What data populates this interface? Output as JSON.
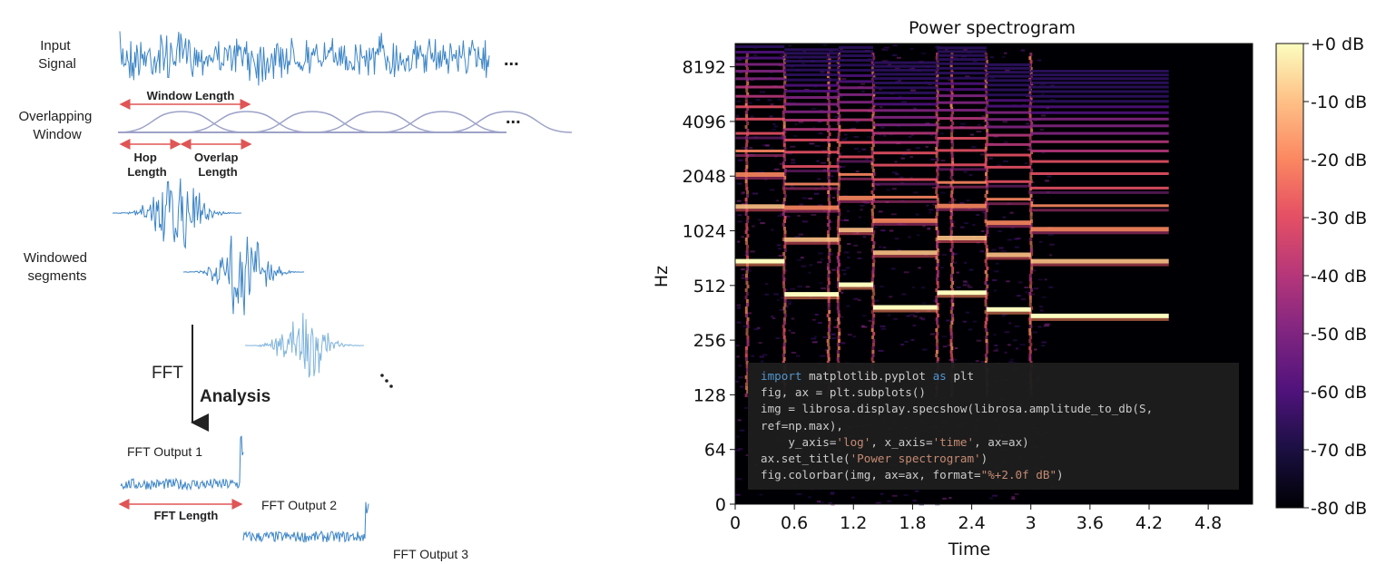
{
  "diagram": {
    "input_signal": [
      "Input",
      "Signal"
    ],
    "overlapping_window": [
      "Overlapping",
      "Window"
    ],
    "window_length": "Window Length",
    "hop_length": [
      "Hop",
      "Length"
    ],
    "overlap_length": [
      "Overlap",
      "Length"
    ],
    "windowed_segments": [
      "Windowed",
      "segments"
    ],
    "fft": "FFT",
    "analysis": "Analysis",
    "fft_output_1": "FFT Output 1",
    "fft_output_2": "FFT Output 2",
    "fft_output_3": "FFT Output 3",
    "fft_length": "FFT Length",
    "ellipsis": "...",
    "colors": {
      "signal": "#3d85c6",
      "arrow": "#e05555",
      "window": "#9da2c8"
    }
  },
  "chart_data": {
    "type": "heatmap",
    "title": "Power spectrogram",
    "xlabel": "Time",
    "ylabel": "Hz",
    "x_ticks": [
      "0",
      "0.6",
      "1.2",
      "1.8",
      "2.4",
      "3",
      "3.6",
      "4.2",
      "4.8"
    ],
    "x_tick_values": [
      0,
      0.6,
      1.2,
      1.8,
      2.4,
      3.0,
      3.6,
      4.2,
      4.8
    ],
    "xlim": [
      0,
      5.25
    ],
    "y_scale": "log",
    "y_ticks": [
      "8192",
      "4096",
      "2048",
      "1024",
      "512",
      "256",
      "128",
      "64",
      "0"
    ],
    "y_tick_values": [
      8192,
      4096,
      2048,
      1024,
      512,
      256,
      128,
      64,
      0
    ],
    "colorbar_ticks": [
      "+0 dB",
      "-10 dB",
      "-20 dB",
      "-30 dB",
      "-40 dB",
      "-50 dB",
      "-60 dB",
      "-70 dB",
      "-80 dB"
    ],
    "colorbar_range": [
      -80,
      0
    ],
    "colormap": "magma",
    "onsets": [
      0.12,
      0.5,
      0.95,
      1.05,
      1.4,
      2.05,
      2.2,
      2.55,
      3.0
    ],
    "notes": [
      {
        "t0": 0.0,
        "t1": 0.5,
        "f0": 700
      },
      {
        "t0": 0.5,
        "t1": 1.05,
        "f0": 460
      },
      {
        "t0": 1.05,
        "t1": 1.4,
        "f0": 520
      },
      {
        "t0": 1.4,
        "t1": 2.05,
        "f0": 390
      },
      {
        "t0": 2.05,
        "t1": 2.55,
        "f0": 470
      },
      {
        "t0": 2.55,
        "t1": 3.0,
        "f0": 380
      },
      {
        "t0": 3.0,
        "t1": 4.4,
        "f0": 350
      }
    ]
  },
  "code": [
    "import matplotlib.pyplot as plt",
    "fig, ax = plt.subplots()",
    "img = librosa.display.specshow(librosa.amplitude_to_db(S,",
    "ref=np.max),",
    "    y_axis='log', x_axis='time', ax=ax)",
    "ax.set_title('Power spectrogram')",
    "fig.colorbar(img, ax=ax, format=\"%+2.0f dB\")"
  ]
}
